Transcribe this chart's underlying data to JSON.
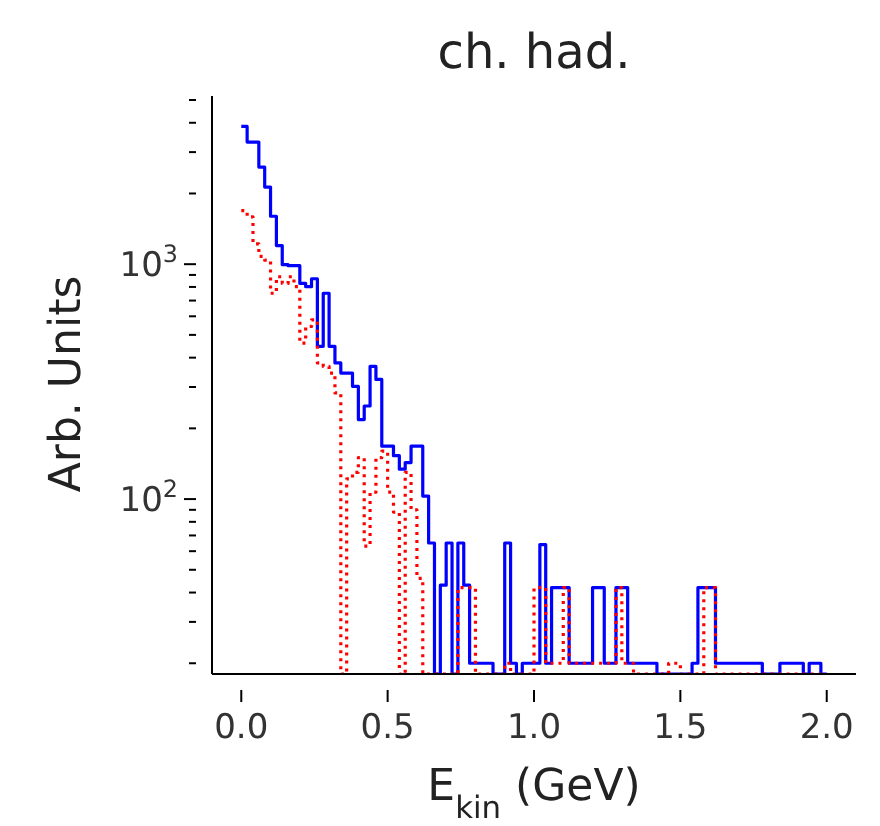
{
  "chart_data": {
    "type": "histogram",
    "title": "ch. had.",
    "xlabel": "E$_{kin}$ (GeV)",
    "ylabel": "Arb. Units",
    "log": "y",
    "grid": false,
    "legend": false,
    "bins": [
      0,
      0.02,
      0.04,
      0.06,
      0.08,
      0.1,
      0.12,
      0.14,
      0.16,
      0.18,
      0.2,
      0.22,
      0.24,
      0.26,
      0.28,
      0.3,
      0.32,
      0.34,
      0.36,
      0.38,
      0.4,
      0.42,
      0.44,
      0.46,
      0.48,
      0.5,
      0.52,
      0.54,
      0.56,
      0.58,
      0.6,
      0.62,
      0.64,
      0.66,
      0.68,
      0.7,
      0.72,
      0.74,
      0.76,
      0.78,
      0.8,
      0.82,
      0.84,
      0.86,
      0.88,
      0.9,
      0.92,
      0.94,
      0.96,
      0.98,
      1,
      1.02,
      1.04,
      1.06,
      1.08,
      1.1,
      1.12,
      1.14,
      1.16,
      1.18,
      1.2,
      1.22,
      1.24,
      1.26,
      1.28,
      1.3,
      1.32,
      1.34,
      1.36,
      1.38,
      1.4,
      1.42,
      1.44,
      1.46,
      1.48,
      1.5,
      1.52,
      1.54,
      1.56,
      1.58,
      1.6,
      1.62,
      1.64,
      1.66,
      1.68,
      1.7,
      1.72,
      1.74,
      1.76,
      1.78,
      1.8,
      1.82,
      1.84,
      1.86,
      1.88,
      1.9,
      1.92,
      1.94,
      1.96,
      1.98,
      2
    ],
    "series": [
      {
        "color": "#0000ff",
        "line_style": "solid",
        "values": [
          3860,
          3310,
          3310,
          2590,
          2130,
          1600,
          1200,
          995,
          985,
          985,
          828,
          802,
          867,
          447,
          752,
          447,
          380,
          344,
          344,
          302,
          218,
          249,
          367,
          323,
          168,
          168,
          153,
          134,
          143,
          168,
          168,
          103,
          65,
          null,
          43,
          65,
          null,
          65,
          43,
          20,
          20,
          20,
          20,
          null,
          null,
          65,
          20,
          null,
          20,
          20,
          20,
          64,
          20,
          42,
          42,
          42,
          20,
          20,
          20,
          20,
          42,
          42,
          20,
          20,
          42,
          42,
          20,
          20,
          20,
          20,
          20,
          null,
          null,
          null,
          null,
          null,
          null,
          20,
          42,
          42,
          42,
          20,
          20,
          20,
          20,
          20,
          20,
          20,
          20,
          null,
          null,
          null,
          20,
          20,
          20,
          20,
          null,
          20,
          20,
          null
        ]
      },
      {
        "color": "#ff0000",
        "line_style": "dotted",
        "values": [
          1690,
          1590,
          1220,
          1080,
          1040,
          752,
          884,
          828,
          884,
          802,
          461,
          543,
          579,
          380,
          367,
          344,
          283,
          null,
          122,
          130,
          150,
          63,
          107,
          150,
          160,
          107,
          88,
          null,
          130,
          90,
          46,
          null,
          null,
          null,
          null,
          null,
          null,
          42,
          42,
          42,
          null,
          null,
          null,
          null,
          null,
          20,
          null,
          null,
          null,
          null,
          42,
          42,
          20,
          20,
          20,
          42,
          20,
          20,
          20,
          20,
          20,
          20,
          20,
          20,
          42,
          20,
          20,
          null,
          null,
          null,
          null,
          null,
          null,
          20,
          20,
          null,
          null,
          null,
          null,
          42,
          42,
          null,
          null,
          null,
          null,
          null,
          null,
          null,
          null,
          null,
          null,
          null,
          null,
          null,
          null,
          null,
          null,
          null,
          null,
          null
        ]
      }
    ],
    "xlim": [
      -0.1,
      2.1
    ],
    "xticks": [
      {
        "value": 0,
        "label": "0.0"
      },
      {
        "value": 0.5,
        "label": "0.5"
      },
      {
        "value": 1,
        "label": "1.0"
      },
      {
        "value": 1.5,
        "label": "1.5"
      },
      {
        "value": 2,
        "label": "2.0"
      }
    ],
    "ylim": [
      18,
      5200
    ],
    "yticks": [
      {
        "value": 20,
        "label": null
      },
      {
        "value": 30,
        "label": null
      },
      {
        "value": 40,
        "label": null
      },
      {
        "value": 50,
        "label": null
      },
      {
        "value": 60,
        "label": null
      },
      {
        "value": 70,
        "label": null
      },
      {
        "value": 80,
        "label": null
      },
      {
        "value": 90,
        "label": null
      },
      {
        "value": 100,
        "label": "10$^{2}$"
      },
      {
        "value": 200,
        "label": null
      },
      {
        "value": 300,
        "label": null
      },
      {
        "value": 400,
        "label": null
      },
      {
        "value": 500,
        "label": null
      },
      {
        "value": 600,
        "label": null
      },
      {
        "value": 700,
        "label": null
      },
      {
        "value": 800,
        "label": null
      },
      {
        "value": 900,
        "label": null
      },
      {
        "value": 1000,
        "label": "10$^{3}$"
      },
      {
        "value": 2000,
        "label": null
      },
      {
        "value": 3000,
        "label": null
      },
      {
        "value": 4000,
        "label": null
      },
      {
        "value": 5000,
        "label": null
      }
    ]
  }
}
